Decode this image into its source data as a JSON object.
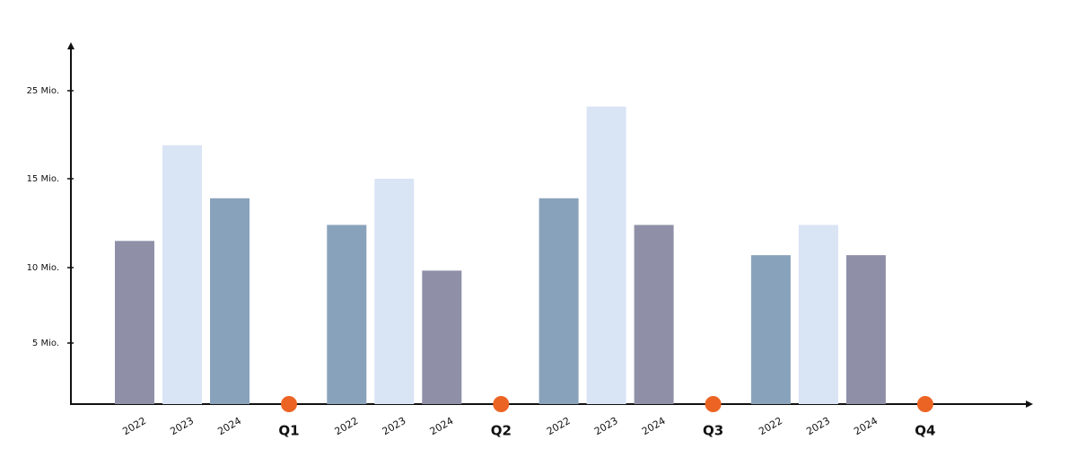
{
  "chart_data": {
    "type": "bar",
    "categories": [
      "Q1",
      "Q2",
      "Q3",
      "Q4"
    ],
    "series": [
      {
        "name": "2022",
        "colors": [
          "#8f90a8",
          "#89a2bc",
          "#89a2bc",
          "#89a2bc"
        ],
        "values": [
          11.5,
          12.4,
          13.9,
          10.7
        ]
      },
      {
        "name": "2023",
        "colors": [
          "#d9e4f5",
          "#d9e4f5",
          "#d9e4f5",
          "#d9e4f5"
        ],
        "values": [
          18.8,
          15,
          23.2,
          12.4
        ]
      },
      {
        "name": "2024",
        "colors": [
          "#89a2bc",
          "#8f90a8",
          "#8f90a8",
          "#8f90a8"
        ],
        "values": [
          13.9,
          9.8,
          12.4,
          10.7
        ]
      }
    ],
    "ylim": [
      0,
      30
    ],
    "yticks": [
      {
        "value": 5,
        "label": "5 Mio."
      },
      {
        "value": 10,
        "label": "10 Mio."
      },
      {
        "value": 15,
        "label": "15 Mio."
      },
      {
        "value": 25,
        "label": "25 Mio."
      }
    ],
    "marker_color": "#ec6424"
  }
}
